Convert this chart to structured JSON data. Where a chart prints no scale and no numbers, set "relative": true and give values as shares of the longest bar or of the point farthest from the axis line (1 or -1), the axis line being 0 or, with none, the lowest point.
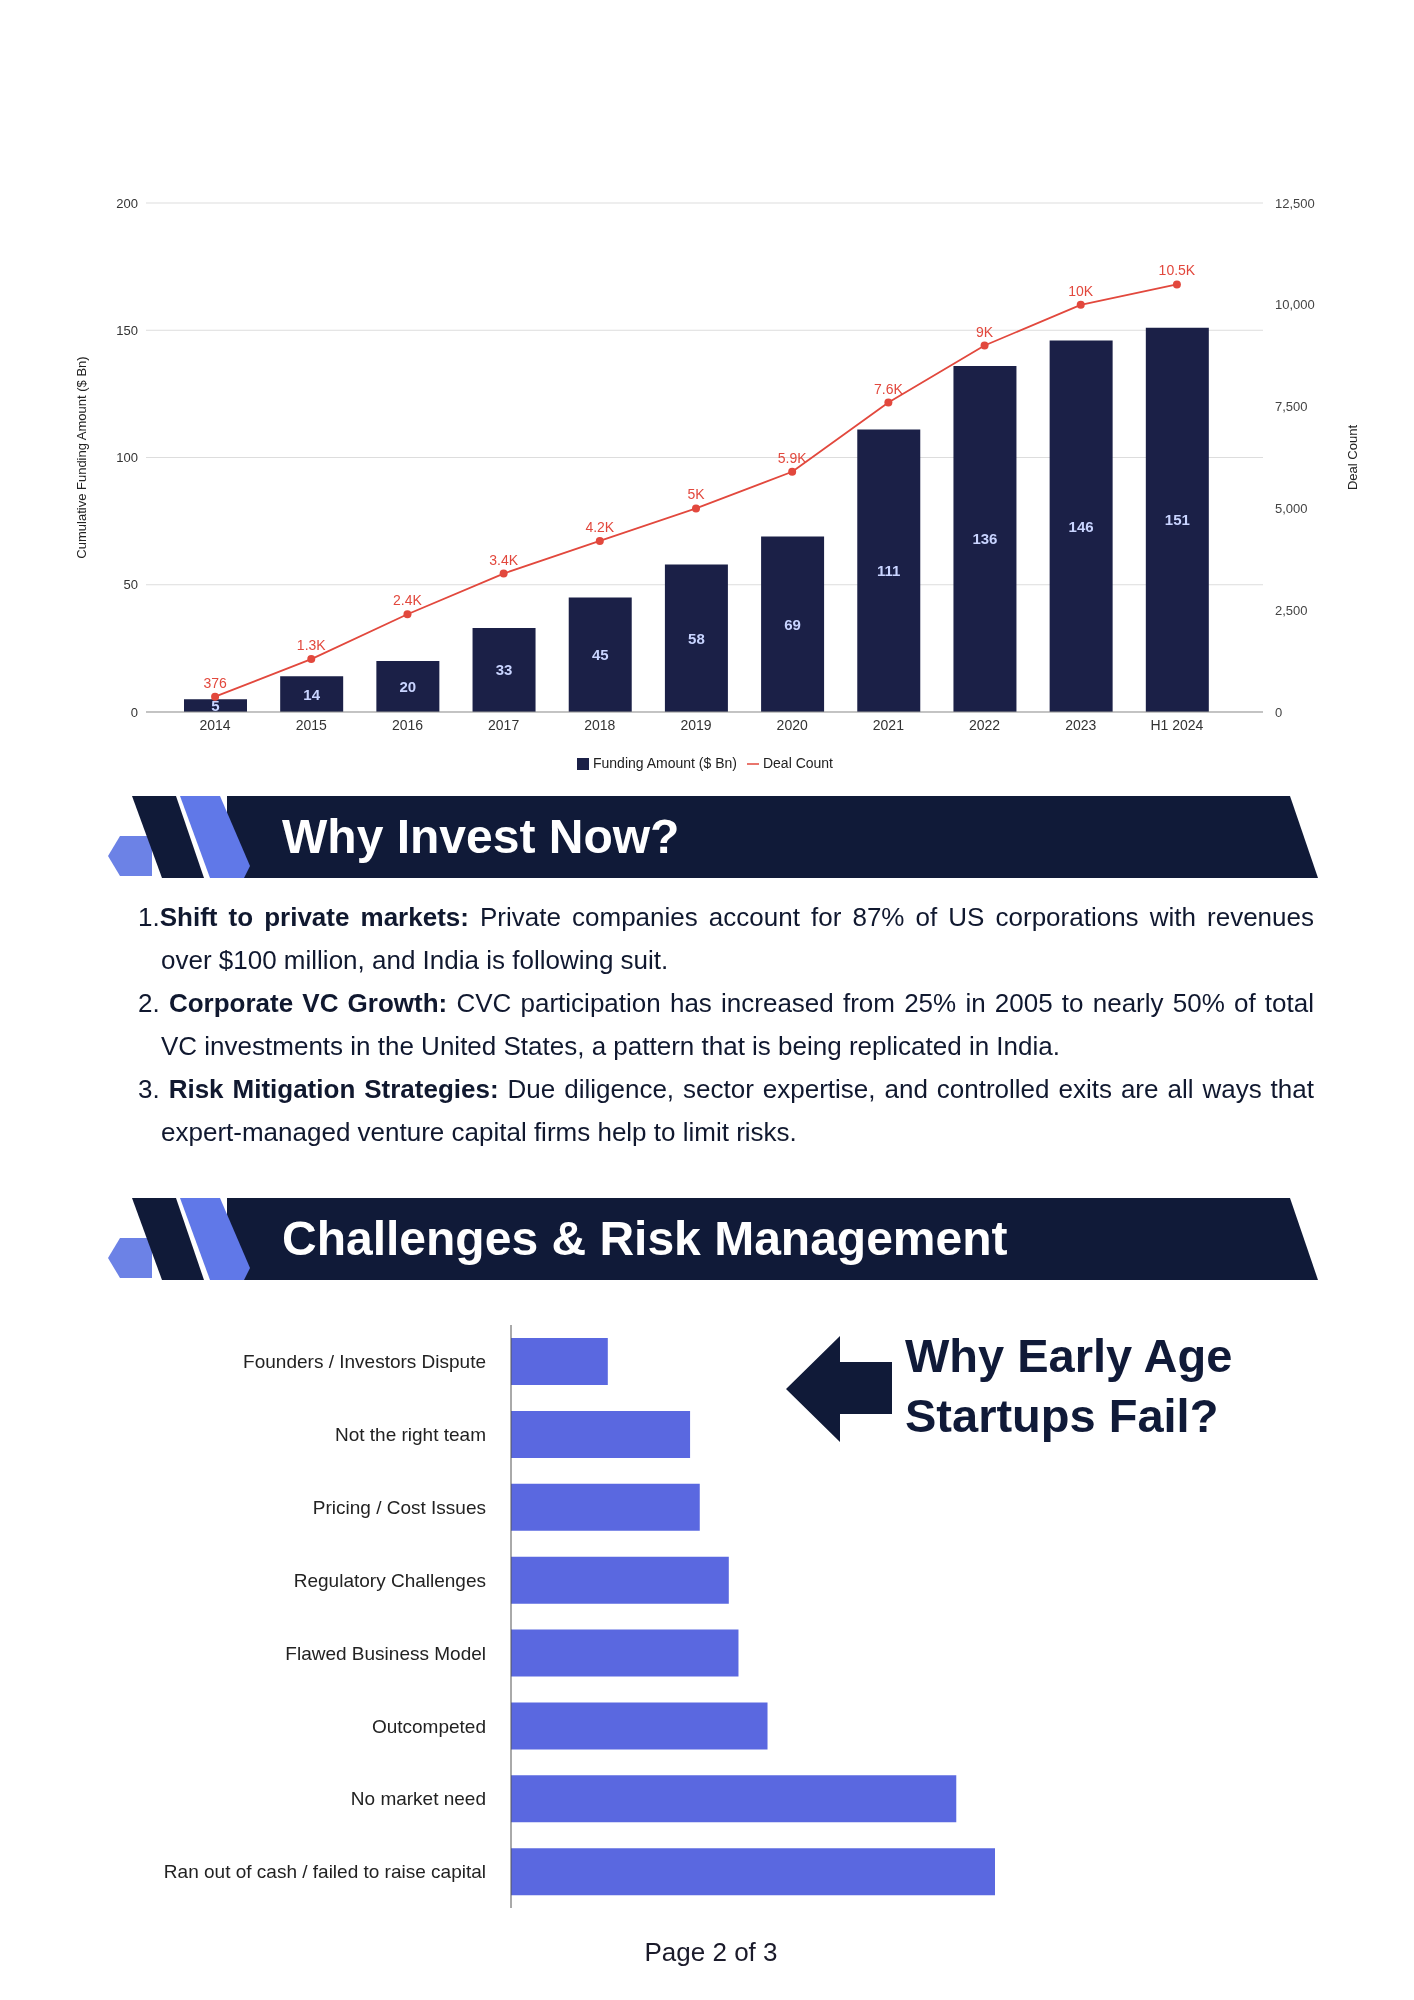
{
  "chart_data": [
    {
      "type": "bar",
      "categories": [
        "2014",
        "2015",
        "2016",
        "2017",
        "2018",
        "2019",
        "2020",
        "2021",
        "2022",
        "2023",
        "H1 2024"
      ],
      "series": [
        {
          "name": "Funding Amount ($ Bn)",
          "type": "bar",
          "color": "#1b2047",
          "values": [
            5,
            14,
            20,
            33,
            45,
            58,
            69,
            111,
            136,
            146,
            151
          ],
          "value_labels": [
            "5",
            "14",
            "20",
            "33",
            "45",
            "58",
            "69",
            "111",
            "136",
            "146",
            "151"
          ]
        },
        {
          "name": "Deal Count",
          "type": "line",
          "axis": "y2",
          "color": "#e2483d",
          "values": [
            376,
            1300,
            2400,
            3400,
            4200,
            5000,
            5900,
            7600,
            9000,
            10000,
            10500
          ],
          "value_labels": [
            "376",
            "1.3K",
            "2.4K",
            "3.4K",
            "4.2K",
            "5K",
            "5.9K",
            "7.6K",
            "9K",
            "10K",
            "10.5K"
          ]
        }
      ],
      "ylabel": "Cumulative Funding Amount ($ Bn)",
      "y2label": "Deal Count",
      "ylim": [
        0,
        200
      ],
      "yticks": [
        0,
        50,
        100,
        150,
        200
      ],
      "y2lim": [
        0,
        12500
      ],
      "y2ticks": [
        0,
        {
          "value": 2500,
          "label": "2,500"
        },
        {
          "value": 5000,
          "label": "5,000"
        },
        {
          "value": 7500,
          "label": "7,500"
        },
        {
          "value": 10000,
          "label": "10,000"
        },
        {
          "value": 12500,
          "label": "12,500"
        }
      ],
      "grid": "y",
      "legend": "bottom",
      "marker": "circle"
    },
    {
      "type": "other",
      "title": "Why Invest Now?",
      "annotations": [
        "1.Shift to private markets: Private companies account for 87% of US corporations with revenues over $100 million, and India is following suit.",
        "2. Corporate VC Growth: CVC participation has increased from 25% in 2005 to nearly 50% of total VC investments in the United States, a pattern that is being replicated in India.",
        "3. Risk Mitigation Strategies: Due diligence, sector expertise, and controlled exits are all ways that expert-managed venture capital firms help to limit risks."
      ]
    },
    {
      "type": "bar",
      "orientation": "horizontal",
      "relative": true,
      "title": "Challenges & Risk Management",
      "subtitle": "Why Early Age Startups Fail?",
      "categories": [
        "Founders / Investors Dispute",
        "Not the right team",
        "Pricing / Cost Issues",
        "Regulatory Challenges",
        "Flawed Business Model",
        "Outcompeted",
        "No market need",
        "Ran out of cash / failed to raise capital"
      ],
      "values": [
        0.2,
        0.37,
        0.39,
        0.45,
        0.47,
        0.53,
        0.92,
        1
      ],
      "color": "#5a68e0",
      "annotations": [
        "Page 2 of 3"
      ]
    }
  ]
}
